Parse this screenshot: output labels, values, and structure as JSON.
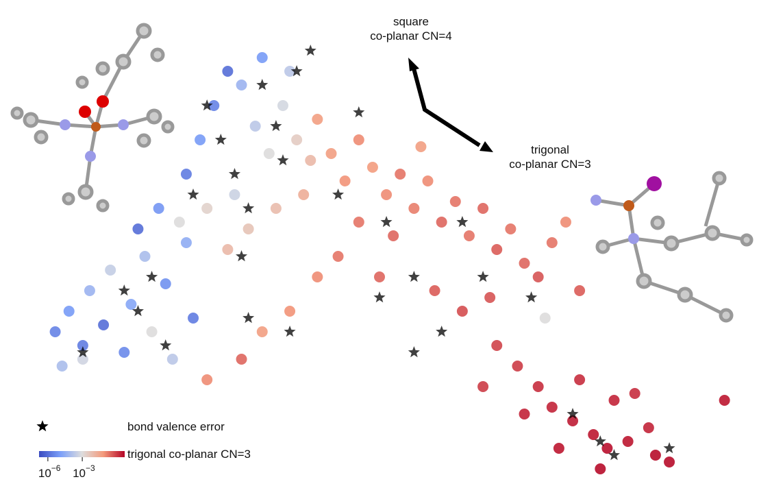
{
  "chart_data": {
    "type": "scatter",
    "xlim": [
      0,
      110
    ],
    "ylim": [
      0,
      70
    ],
    "annotations": [
      {
        "lines": [
          "square",
          "co-planar CN=4"
        ]
      },
      {
        "lines": [
          "trigonal",
          "co-planar CN=3"
        ]
      }
    ],
    "colorbar": {
      "scale": "log",
      "clim": [
        1.7e-07,
        5
      ],
      "colors": [
        "#3b4cc0",
        "#7b9ff9",
        "#dddddd",
        "#f49a7b",
        "#b40426"
      ],
      "ticks": [
        {
          "value": 1e-06,
          "label": "10",
          "exponent": "−6"
        },
        {
          "value": 0.001,
          "label": "10",
          "exponent": "−3"
        }
      ]
    },
    "series": [
      {
        "name": "trigonal co-planar CN=3",
        "marker": "circle",
        "x": [
          8,
          10,
          12,
          13,
          15,
          16,
          18,
          19,
          21,
          22,
          24,
          25,
          27,
          28,
          12,
          9,
          20,
          23,
          27,
          29,
          31,
          33,
          35,
          37,
          39,
          41,
          43,
          45,
          34,
          30,
          36,
          40,
          44,
          26,
          33,
          46,
          42,
          38,
          48,
          50,
          52,
          54,
          56,
          58,
          60,
          62,
          64,
          66,
          68,
          70,
          72,
          74,
          76,
          78,
          80,
          82,
          84,
          61,
          57,
          52,
          46,
          42,
          38,
          35,
          30,
          63,
          67,
          71,
          55,
          49,
          79,
          72,
          75,
          78,
          80,
          83,
          86,
          88,
          91,
          94,
          97,
          84,
          89,
          92,
          76,
          81,
          95,
          105,
          70,
          87
        ],
        "y": [
          22,
          25,
          20,
          28,
          23,
          31,
          19,
          26,
          33,
          22,
          29,
          18,
          35,
          24,
          18,
          17,
          37,
          40,
          45,
          50,
          55,
          60,
          58,
          52,
          48,
          55,
          50,
          47,
          42,
          40,
          37,
          40,
          42,
          38,
          34,
          53,
          60,
          62,
          48,
          44,
          50,
          46,
          42,
          45,
          40,
          44,
          38,
          41,
          36,
          40,
          34,
          37,
          32,
          30,
          35,
          38,
          28,
          49,
          36,
          38,
          30,
          25,
          22,
          18,
          15,
          28,
          25,
          27,
          30,
          33,
          24,
          20,
          17,
          14,
          11,
          9,
          7,
          5,
          6,
          8,
          3,
          15,
          12,
          13,
          10,
          5,
          4,
          12,
          14,
          2
        ],
        "c": [
          3e-06,
          1e-05,
          2e-06,
          5e-05,
          1e-06,
          0.0003,
          4e-06,
          2e-05,
          0.0001,
          0.001,
          6e-06,
          0.0002,
          3e-05,
          2e-06,
          0.0005,
          0.0001,
          1e-06,
          8e-06,
          2e-06,
          1e-05,
          3e-06,
          1e-06,
          5e-05,
          0.0002,
          0.001,
          0.0006,
          0.003,
          0.01,
          0.0004,
          0.002,
          0.005,
          0.008,
          0.02,
          0.001,
          0.01,
          0.05,
          0.0002,
          1e-05,
          0.05,
          0.08,
          0.1,
          0.06,
          0.1,
          0.2,
          0.15,
          0.1,
          0.3,
          0.2,
          0.2,
          0.3,
          0.4,
          0.2,
          0.3,
          0.5,
          0.2,
          0.1,
          0.4,
          0.05,
          0.3,
          0.2,
          0.1,
          0.08,
          0.05,
          0.3,
          0.1,
          0.4,
          0.6,
          0.5,
          0.3,
          0.2,
          0.001,
          0.8,
          1,
          1.5,
          2,
          2.5,
          3,
          3.5,
          3,
          2,
          4,
          1.5,
          2,
          1.5,
          2,
          3,
          4,
          3,
          1,
          4
        ]
      },
      {
        "name": "bond valence error",
        "marker": "star",
        "color": "#000000",
        "x": [
          30,
          32,
          34,
          36,
          38,
          40,
          28,
          22,
          20,
          24,
          18,
          12,
          35,
          41,
          45,
          43,
          49,
          52,
          56,
          60,
          64,
          67,
          70,
          77,
          83,
          87,
          89,
          97,
          36,
          42,
          60,
          55
        ],
        "y": [
          55,
          50,
          45,
          40,
          58,
          52,
          42,
          30,
          25,
          20,
          28,
          19,
          33,
          47,
          63,
          60,
          42,
          54,
          38,
          30,
          22,
          38,
          30,
          27,
          10,
          6,
          4,
          5,
          24,
          22,
          19,
          27
        ]
      }
    ]
  }
}
